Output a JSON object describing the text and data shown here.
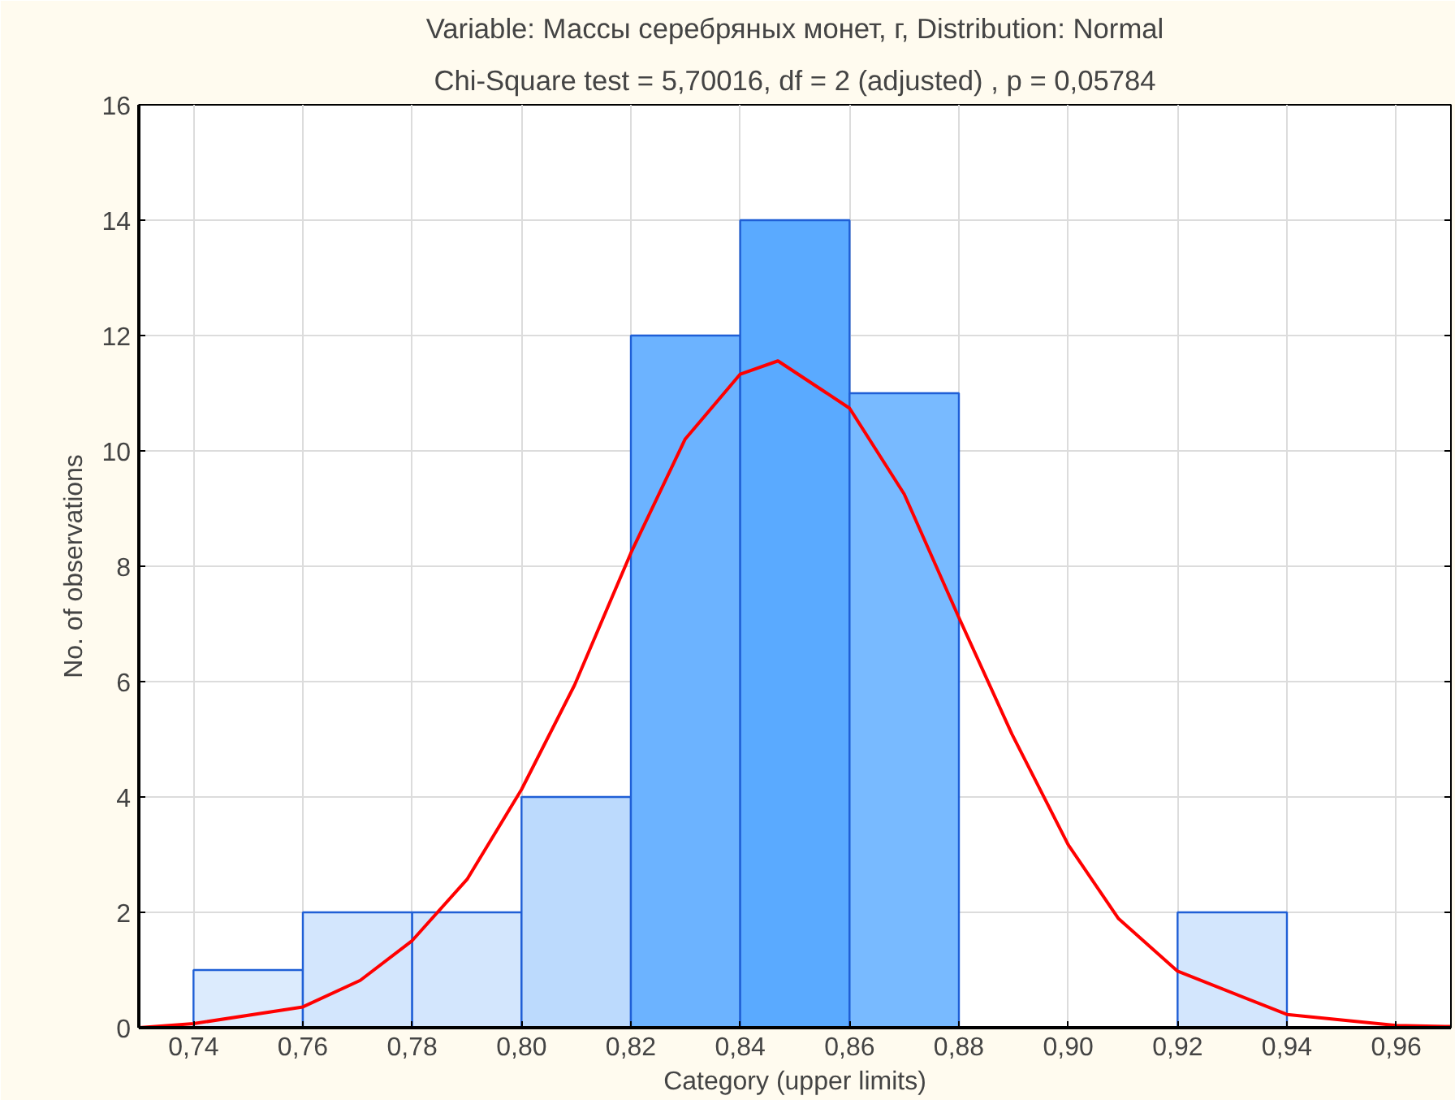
{
  "chart_data": {
    "type": "histogram",
    "title": "Variable: Массы серебряных монет, г, Distribution: Normal",
    "subtitle": "Chi-Square test = 5,70016, df = 2 (adjusted) , p = 0,05784",
    "xlabel": "Category (upper limits)",
    "ylabel": "No. of observations",
    "bins": [
      0.74,
      0.76,
      0.78,
      0.8,
      0.82,
      0.84,
      0.86,
      0.88,
      0.9,
      0.92,
      0.94
    ],
    "values": [
      1,
      2,
      2,
      4,
      12,
      14,
      11,
      0,
      0,
      2
    ],
    "colors": [
      "#dcebfd",
      "#d3e6fd",
      "#d3e6fd",
      "#bcdafd",
      "#6cb3ff",
      "#5aaaff",
      "#78baff",
      "#ffffff",
      "#ffffff",
      "#d3e6fd"
    ],
    "series": [
      {
        "type": "line",
        "color": "#ff0000",
        "x": [
          0.73,
          0.74,
          0.76,
          0.7705,
          0.78,
          0.7901,
          0.8,
          0.8097,
          0.82,
          0.8299,
          0.84,
          0.8469,
          0.86,
          0.87,
          0.88,
          0.8897,
          0.9,
          0.9092,
          0.92,
          0.94,
          0.96,
          0.97
        ],
        "values": [
          0.0,
          0.07,
          0.36,
          0.82,
          1.51,
          2.58,
          4.13,
          5.94,
          8.23,
          10.2,
          11.33,
          11.56,
          10.74,
          9.25,
          7.11,
          5.09,
          3.17,
          1.89,
          0.98,
          0.23,
          0.04,
          0.02
        ]
      }
    ],
    "xlim": [
      0.73,
      0.97
    ],
    "xticks": [
      {
        "value": 0.74,
        "label": "0,74"
      },
      {
        "value": 0.76,
        "label": "0,76"
      },
      {
        "value": 0.78,
        "label": "0,78"
      },
      {
        "value": 0.8,
        "label": "0,80"
      },
      {
        "value": 0.82,
        "label": "0,82"
      },
      {
        "value": 0.84,
        "label": "0,84"
      },
      {
        "value": 0.86,
        "label": "0,86"
      },
      {
        "value": 0.88,
        "label": "0,88"
      },
      {
        "value": 0.9,
        "label": "0,90"
      },
      {
        "value": 0.92,
        "label": "0,92"
      },
      {
        "value": 0.94,
        "label": "0,94"
      },
      {
        "value": 0.96,
        "label": "0,96"
      }
    ],
    "ylim": [
      0,
      16
    ],
    "yticks": [
      0,
      2,
      4,
      6,
      8,
      10,
      12,
      14,
      16
    ],
    "grid": true
  }
}
